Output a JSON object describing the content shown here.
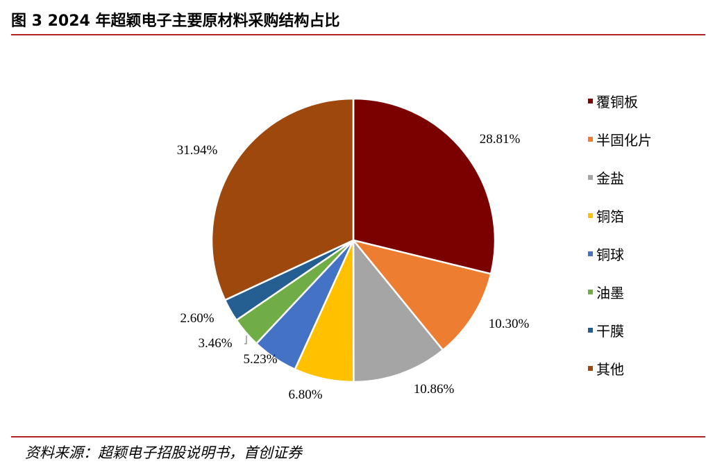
{
  "title": "图  3 2024 年超颖电子主要原材料采购结构占比",
  "source": "资料来源：超颖电子招股说明书，首创证券",
  "chart_data": {
    "type": "pie",
    "title": "",
    "slices": [
      {
        "label": "覆铜板",
        "value": 28.81,
        "display": "28.81%",
        "color": "#7b0000"
      },
      {
        "label": "半固化片",
        "value": 10.3,
        "display": "10.30%",
        "color": "#ed7d31"
      },
      {
        "label": "金盐",
        "value": 10.86,
        "display": "10.86%",
        "color": "#a5a5a5"
      },
      {
        "label": "铜箔",
        "value": 6.8,
        "display": "6.80%",
        "color": "#ffc000"
      },
      {
        "label": "铜球",
        "value": 5.23,
        "display": "5.23%",
        "color": "#4472c4"
      },
      {
        "label": "油墨",
        "value": 3.46,
        "display": "3.46%",
        "color": "#70ad47"
      },
      {
        "label": "干膜",
        "value": 2.6,
        "display": "2.60%",
        "color": "#255e91"
      },
      {
        "label": "其他",
        "value": 31.94,
        "display": "31.94%",
        "color": "#9e480e"
      }
    ],
    "start": "12 o'clock",
    "direction": "clockwise",
    "legend": "right"
  }
}
